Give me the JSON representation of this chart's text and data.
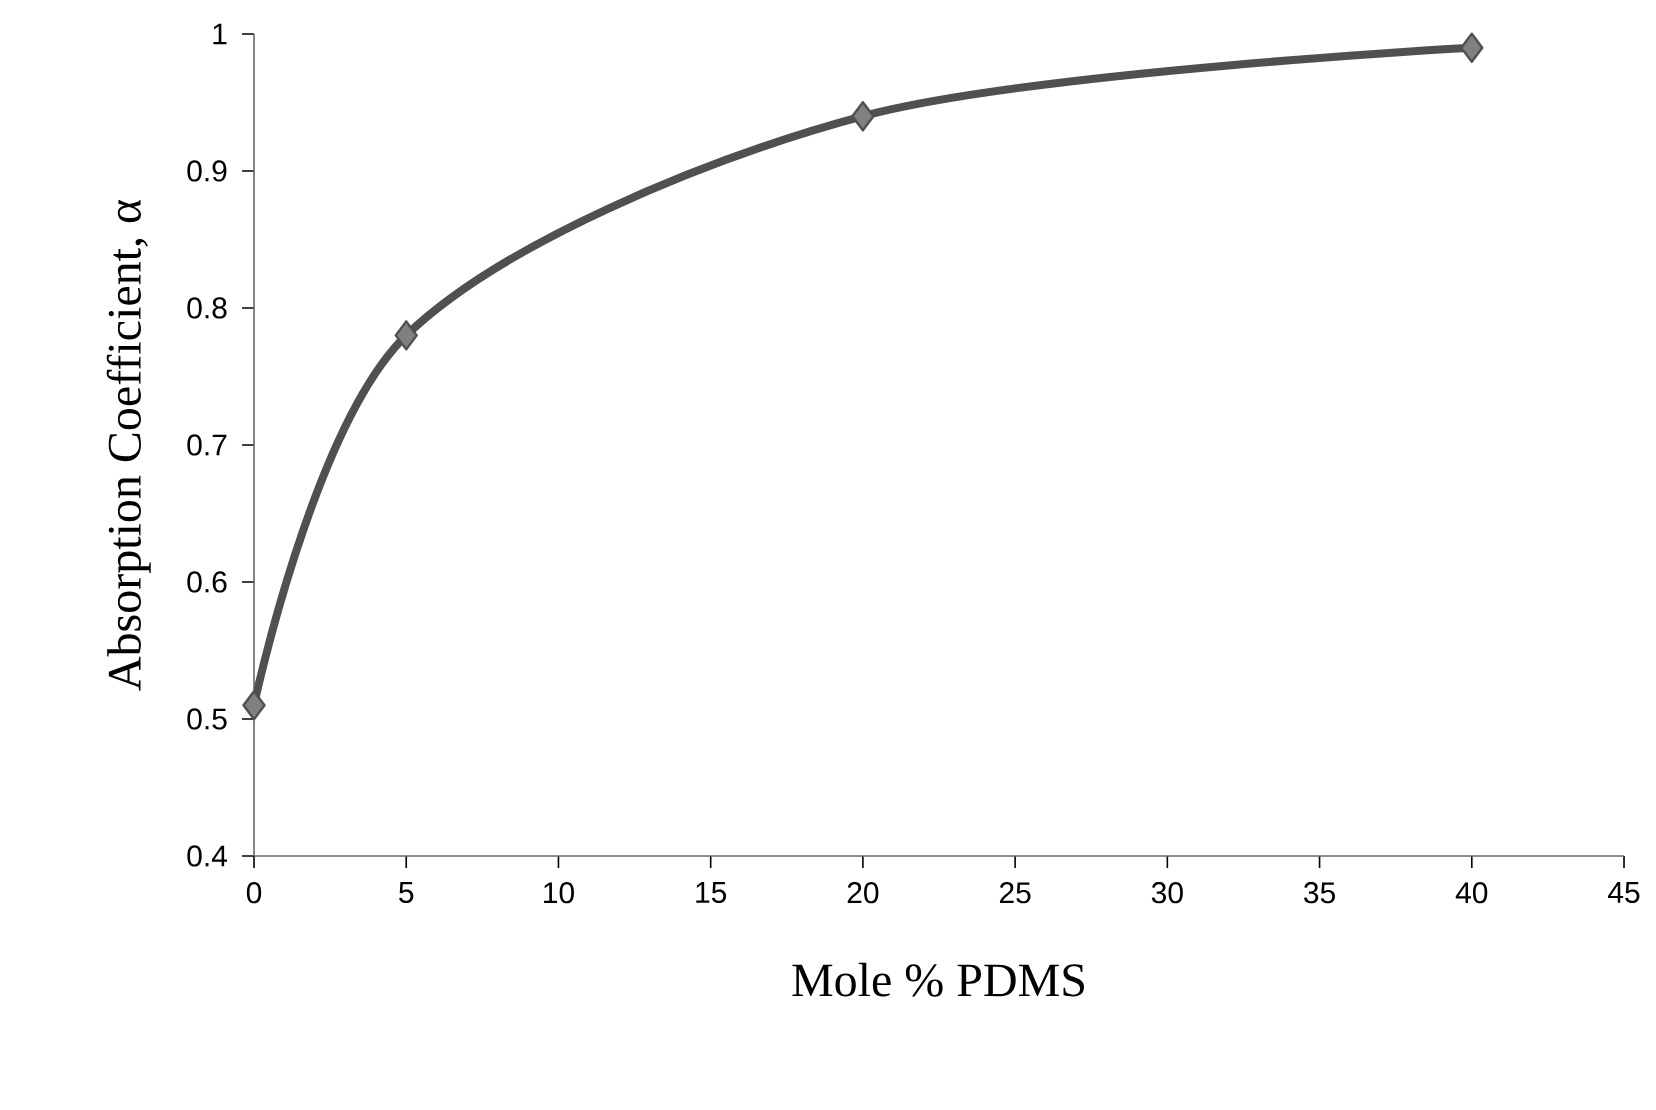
{
  "chart_data": {
    "type": "line",
    "xlabel": "Mole % PDMS",
    "ylabel": "Absorption Coefficient, α",
    "x": [
      0,
      5,
      20,
      40
    ],
    "series": [
      {
        "color": "#505050",
        "values": [
          0.51,
          0.78,
          0.94,
          0.99
        ]
      }
    ],
    "xlim": [
      0,
      45
    ],
    "xticks": [
      0,
      5,
      10,
      15,
      20,
      25,
      30,
      35,
      40,
      45
    ],
    "ylim": [
      0.4,
      1
    ],
    "yticks": [
      0.4,
      0.5,
      0.6,
      0.7,
      0.8,
      0.9,
      1
    ],
    "marker": "diamond"
  }
}
